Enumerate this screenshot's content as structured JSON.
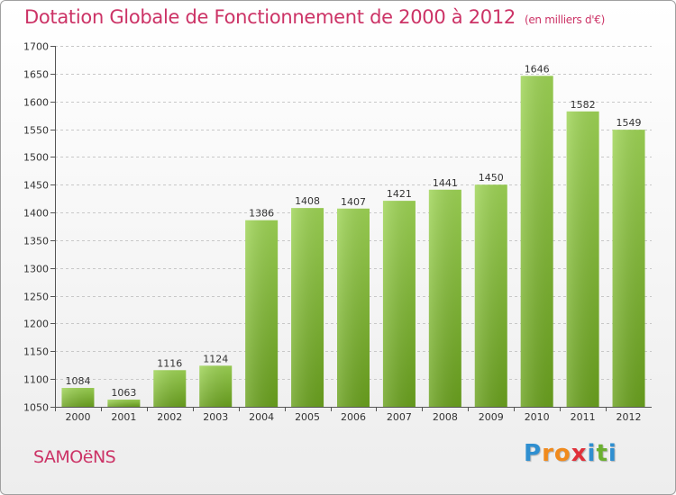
{
  "title": "Dotation Globale de Fonctionnement de 2000 à 2012",
  "subtitle": "(en milliers d'€)",
  "commune": "SAMOëNS",
  "brand": {
    "letters": [
      "P",
      "r",
      "o",
      "x",
      "i",
      "t",
      "i"
    ],
    "colors": [
      "#2f8fd0",
      "#f08a1d",
      "#f08a1d",
      "#e0303a",
      "#2f8fd0",
      "#6bb030",
      "#2f8fd0"
    ]
  },
  "colors": {
    "bar_light": "#9ed455",
    "bar_dark": "#6aa11e",
    "accent": "#cc3366"
  },
  "chart_data": {
    "type": "bar",
    "categories": [
      "2000",
      "2001",
      "2002",
      "2003",
      "2004",
      "2005",
      "2006",
      "2007",
      "2008",
      "2009",
      "2010",
      "2011",
      "2012"
    ],
    "values": [
      1084,
      1063,
      1116,
      1124,
      1386,
      1408,
      1407,
      1421,
      1441,
      1450,
      1646,
      1582,
      1549
    ],
    "ylim": [
      1050,
      1700
    ],
    "yticks": [
      1050,
      1100,
      1150,
      1200,
      1250,
      1300,
      1350,
      1400,
      1450,
      1500,
      1550,
      1600,
      1650,
      1700
    ],
    "grid": true,
    "xlabel": "",
    "ylabel": ""
  }
}
